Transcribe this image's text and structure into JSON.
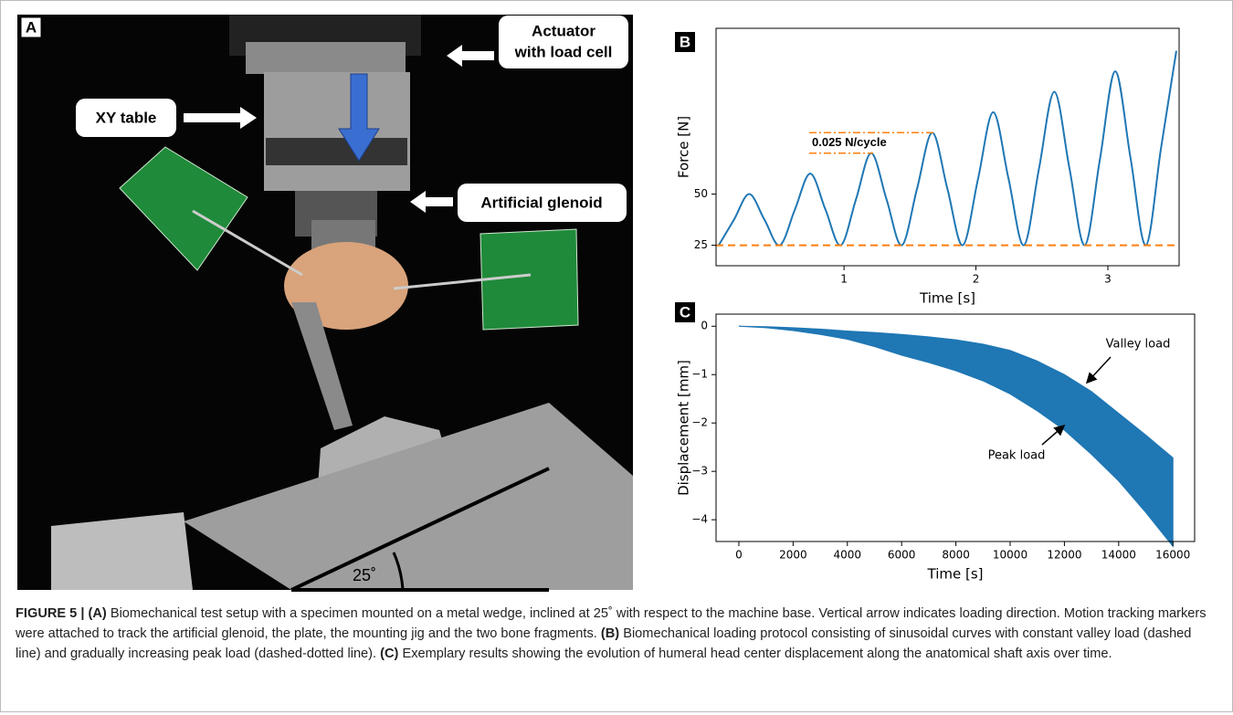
{
  "figure": {
    "photo": {
      "panel_label": "A",
      "labels": [
        [
          "Actuator",
          "with load cell"
        ],
        [
          "XY table"
        ],
        [
          "Artificial glenoid"
        ]
      ],
      "angle": "25˚"
    },
    "caption": {
      "label": "FIGURE 5 |",
      "parts": [
        {
          "tag": "(A)",
          "text": " Biomechanical test setup with a specimen mounted on a metal wedge, inclined at 25˚ with respect to the machine base. Vertical arrow indicates loading direction. Motion tracking markers were attached to track the artificial glenoid, the plate, the mounting jig and the two bone fragments. "
        },
        {
          "tag": "(B)",
          "text": " Biomechanical loading protocol consisting of sinusoidal curves with constant valley load (dashed line) and gradually increasing peak load (dashed-dotted line). "
        },
        {
          "tag": "(C)",
          "text": " Exemplary results showing the evolution of humeral head center displacement along the anatomical shaft axis over time."
        }
      ]
    }
  },
  "chart_data": [
    {
      "type": "line",
      "panel_label": "B",
      "x_label": "Time [s]",
      "y_label": "Force [N]",
      "color": "#1f77b4",
      "x": [
        0.05,
        0.166,
        0.281,
        0.397,
        0.513,
        0.628,
        0.744,
        0.859,
        0.975,
        1.091,
        1.206,
        1.322,
        1.438,
        1.553,
        1.669,
        1.784,
        1.9,
        2.016,
        2.131,
        2.247,
        2.363,
        2.478,
        2.594,
        2.709,
        2.825,
        2.941,
        3.056,
        3.172,
        3.288,
        3.403,
        3.519
      ],
      "values": [
        25,
        37.5,
        50,
        37.5,
        25,
        42.5,
        60,
        42.5,
        25,
        47.5,
        70,
        47.5,
        25,
        52.5,
        80,
        52.5,
        25,
        57.5,
        90,
        57.5,
        25,
        62.5,
        100,
        62.5,
        25,
        67.5,
        110,
        67.5,
        25,
        72.5,
        120
      ],
      "xlim": [
        0.03,
        3.54
      ],
      "ylim": [
        15,
        131
      ],
      "xticks": [
        1,
        2,
        3
      ],
      "yticks": [
        25,
        50
      ],
      "ref_color": "#ff7f0e",
      "valley_line": 25,
      "peak_lines": [
        70,
        80
      ],
      "annotation": "0.025 N/cycle"
    },
    {
      "type": "band",
      "panel_label": "C",
      "x_label": "Time [s]",
      "y_label": "Displacement [mm]",
      "color": "#1f77b4",
      "x": [
        0,
        1000,
        2000,
        3000,
        4000,
        5000,
        6000,
        7000,
        8000,
        9000,
        10000,
        11000,
        12000,
        13000,
        14000,
        15000,
        16000
      ],
      "series": [
        {
          "name": "Valley load",
          "values": [
            0,
            -0.01,
            -0.03,
            -0.06,
            -0.1,
            -0.13,
            -0.17,
            -0.22,
            -0.28,
            -0.37,
            -0.5,
            -0.72,
            -1.0,
            -1.35,
            -1.8,
            -2.25,
            -2.72
          ]
        },
        {
          "name": "Peak load",
          "values": [
            0,
            -0.03,
            -0.09,
            -0.17,
            -0.27,
            -0.42,
            -0.6,
            -0.75,
            -0.92,
            -1.13,
            -1.4,
            -1.75,
            -2.15,
            -2.65,
            -3.2,
            -3.85,
            -4.55
          ]
        }
      ],
      "xlim": [
        -840,
        16800
      ],
      "ylim": [
        -4.45,
        0.25
      ],
      "xticks": [
        0,
        2000,
        4000,
        6000,
        8000,
        10000,
        12000,
        14000,
        16000
      ],
      "yticks": [
        0,
        {
          "value": -1,
          "label": "−1"
        },
        {
          "value": -2,
          "label": "−2"
        },
        {
          "value": -3,
          "label": "−3"
        },
        {
          "value": -4,
          "label": "−4"
        }
      ]
    }
  ]
}
